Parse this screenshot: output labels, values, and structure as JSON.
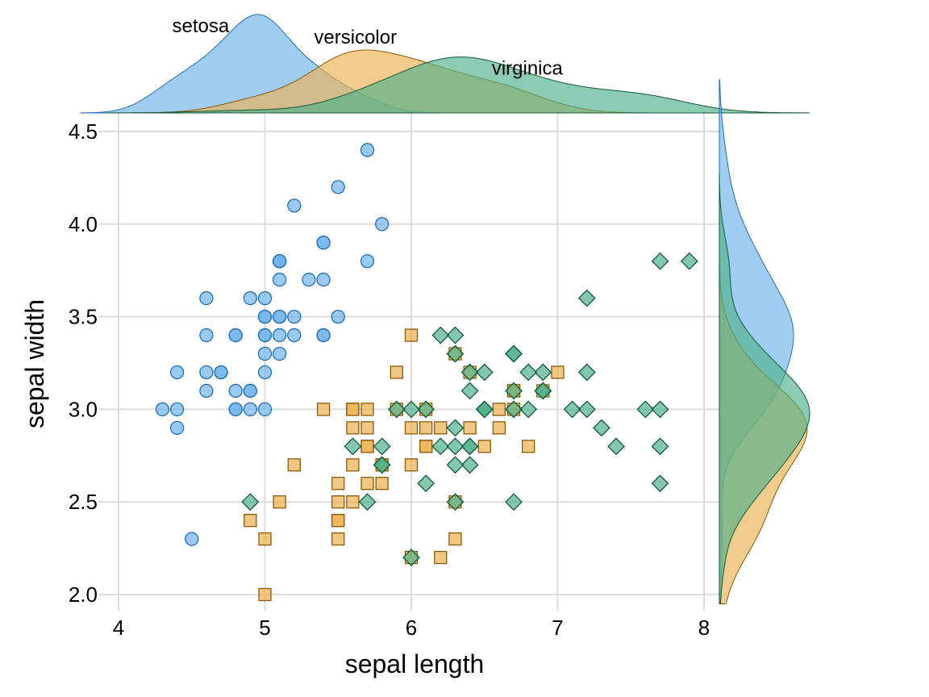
{
  "chart_data": {
    "type": "scatter",
    "xlabel": "sepal length",
    "ylabel": "sepal width",
    "xlim": [
      4,
      8
    ],
    "ylim": [
      2,
      4.5
    ],
    "x_ticks": [
      "4",
      "5",
      "6",
      "7",
      "8"
    ],
    "y_ticks": [
      "2.0",
      "2.5",
      "3.0",
      "3.5",
      "4.0",
      "4.5"
    ],
    "grid": true,
    "marginal": "density",
    "series": [
      {
        "name": "setosa",
        "marker": "circle",
        "color": "#6fb2ec",
        "edge": "#1f6fb0",
        "points": [
          [
            5.1,
            3.5
          ],
          [
            4.9,
            3.0
          ],
          [
            4.7,
            3.2
          ],
          [
            4.6,
            3.1
          ],
          [
            5.0,
            3.6
          ],
          [
            5.4,
            3.9
          ],
          [
            4.6,
            3.4
          ],
          [
            5.0,
            3.4
          ],
          [
            4.4,
            2.9
          ],
          [
            4.9,
            3.1
          ],
          [
            5.4,
            3.7
          ],
          [
            4.8,
            3.4
          ],
          [
            4.8,
            3.0
          ],
          [
            4.3,
            3.0
          ],
          [
            5.8,
            4.0
          ],
          [
            5.7,
            4.4
          ],
          [
            5.4,
            3.9
          ],
          [
            5.1,
            3.5
          ],
          [
            5.7,
            3.8
          ],
          [
            5.1,
            3.8
          ],
          [
            5.4,
            3.4
          ],
          [
            5.1,
            3.7
          ],
          [
            4.6,
            3.6
          ],
          [
            5.1,
            3.3
          ],
          [
            4.8,
            3.4
          ],
          [
            5.0,
            3.0
          ],
          [
            5.0,
            3.4
          ],
          [
            5.2,
            3.5
          ],
          [
            5.2,
            3.4
          ],
          [
            4.7,
            3.2
          ],
          [
            4.8,
            3.1
          ],
          [
            5.4,
            3.4
          ],
          [
            5.2,
            4.1
          ],
          [
            5.5,
            4.2
          ],
          [
            4.9,
            3.1
          ],
          [
            5.0,
            3.2
          ],
          [
            5.5,
            3.5
          ],
          [
            4.9,
            3.6
          ],
          [
            4.4,
            3.0
          ],
          [
            5.1,
            3.4
          ],
          [
            5.0,
            3.5
          ],
          [
            4.5,
            2.3
          ],
          [
            4.4,
            3.2
          ],
          [
            5.0,
            3.5
          ],
          [
            5.1,
            3.8
          ],
          [
            4.8,
            3.0
          ],
          [
            5.1,
            3.8
          ],
          [
            4.6,
            3.2
          ],
          [
            5.3,
            3.7
          ],
          [
            5.0,
            3.3
          ]
        ]
      },
      {
        "name": "versicolor",
        "marker": "square",
        "color": "#ebb04f",
        "edge": "#8a5a08",
        "points": [
          [
            7.0,
            3.2
          ],
          [
            6.4,
            3.2
          ],
          [
            6.9,
            3.1
          ],
          [
            5.5,
            2.3
          ],
          [
            6.5,
            2.8
          ],
          [
            5.7,
            2.8
          ],
          [
            6.3,
            3.3
          ],
          [
            4.9,
            2.4
          ],
          [
            6.6,
            2.9
          ],
          [
            5.2,
            2.7
          ],
          [
            5.0,
            2.0
          ],
          [
            5.9,
            3.0
          ],
          [
            6.0,
            2.2
          ],
          [
            6.1,
            2.9
          ],
          [
            5.6,
            2.9
          ],
          [
            6.7,
            3.1
          ],
          [
            5.6,
            3.0
          ],
          [
            5.8,
            2.7
          ],
          [
            6.2,
            2.2
          ],
          [
            5.6,
            2.5
          ],
          [
            5.9,
            3.2
          ],
          [
            6.1,
            2.8
          ],
          [
            6.3,
            2.5
          ],
          [
            6.1,
            2.8
          ],
          [
            6.4,
            2.9
          ],
          [
            6.6,
            3.0
          ],
          [
            6.8,
            2.8
          ],
          [
            6.7,
            3.0
          ],
          [
            6.0,
            2.9
          ],
          [
            5.7,
            2.6
          ],
          [
            5.5,
            2.4
          ],
          [
            5.5,
            2.4
          ],
          [
            5.8,
            2.7
          ],
          [
            6.0,
            2.7
          ],
          [
            5.4,
            3.0
          ],
          [
            6.0,
            3.4
          ],
          [
            6.7,
            3.1
          ],
          [
            6.3,
            2.3
          ],
          [
            5.6,
            3.0
          ],
          [
            5.5,
            2.5
          ],
          [
            5.5,
            2.6
          ],
          [
            6.1,
            3.0
          ],
          [
            5.8,
            2.6
          ],
          [
            5.0,
            2.3
          ],
          [
            5.6,
            2.7
          ],
          [
            5.7,
            3.0
          ],
          [
            5.7,
            2.9
          ],
          [
            6.2,
            2.9
          ],
          [
            5.1,
            2.5
          ],
          [
            5.7,
            2.8
          ]
        ]
      },
      {
        "name": "virginica",
        "marker": "diamond",
        "color": "#4fb08a",
        "edge": "#145a3a",
        "points": [
          [
            6.3,
            3.3
          ],
          [
            5.8,
            2.7
          ],
          [
            7.1,
            3.0
          ],
          [
            6.3,
            2.9
          ],
          [
            6.5,
            3.0
          ],
          [
            7.6,
            3.0
          ],
          [
            4.9,
            2.5
          ],
          [
            7.3,
            2.9
          ],
          [
            6.7,
            2.5
          ],
          [
            7.2,
            3.6
          ],
          [
            6.5,
            3.2
          ],
          [
            6.4,
            2.7
          ],
          [
            6.8,
            3.0
          ],
          [
            5.7,
            2.5
          ],
          [
            5.8,
            2.8
          ],
          [
            6.4,
            3.2
          ],
          [
            6.5,
            3.0
          ],
          [
            7.7,
            3.8
          ],
          [
            7.7,
            2.6
          ],
          [
            6.0,
            2.2
          ],
          [
            6.9,
            3.2
          ],
          [
            5.6,
            2.8
          ],
          [
            7.7,
            2.8
          ],
          [
            6.3,
            2.7
          ],
          [
            6.7,
            3.3
          ],
          [
            7.2,
            3.2
          ],
          [
            6.2,
            2.8
          ],
          [
            6.1,
            3.0
          ],
          [
            6.4,
            2.8
          ],
          [
            7.2,
            3.0
          ],
          [
            7.4,
            2.8
          ],
          [
            7.9,
            3.8
          ],
          [
            6.4,
            2.8
          ],
          [
            6.3,
            2.8
          ],
          [
            6.1,
            2.6
          ],
          [
            7.7,
            3.0
          ],
          [
            6.3,
            3.4
          ],
          [
            6.4,
            3.1
          ],
          [
            6.0,
            3.0
          ],
          [
            6.9,
            3.1
          ],
          [
            6.7,
            3.1
          ],
          [
            6.9,
            3.1
          ],
          [
            5.8,
            2.7
          ],
          [
            6.8,
            3.2
          ],
          [
            6.7,
            3.3
          ],
          [
            6.7,
            3.0
          ],
          [
            6.3,
            2.5
          ],
          [
            6.5,
            3.0
          ],
          [
            6.2,
            3.4
          ],
          [
            5.9,
            3.0
          ]
        ]
      }
    ]
  }
}
